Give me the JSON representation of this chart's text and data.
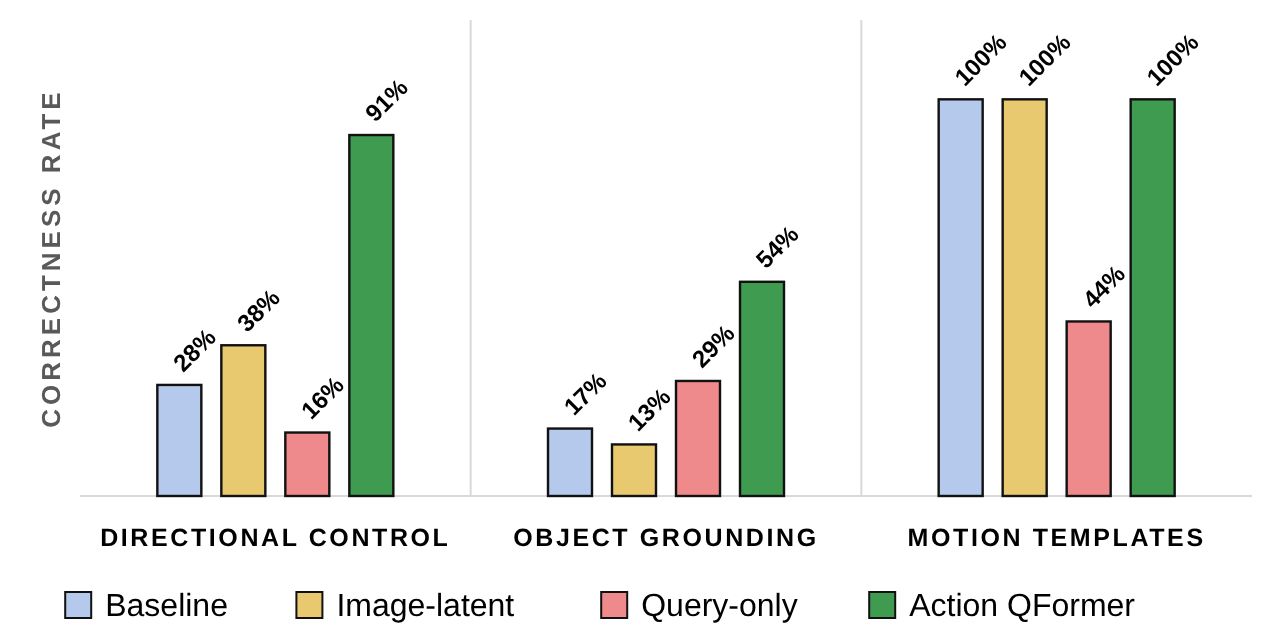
{
  "chart_data": {
    "type": "bar",
    "ylabel": "CORRECTNESS RATE",
    "categories": [
      "DIRECTIONAL CONTROL",
      "OBJECT GROUNDING",
      "MOTION TEMPLATES"
    ],
    "ylim": [
      0,
      120
    ],
    "tick_labels": "x",
    "legend": "bottom",
    "grid": false,
    "series": [
      {
        "name": "Baseline",
        "color": "#b4c9ec",
        "values": [
          28,
          17,
          100
        ],
        "value_labels": [
          "28%",
          "17%",
          "100%"
        ]
      },
      {
        "name": "Image-latent",
        "color": "#e9c96f",
        "values": [
          38,
          13,
          100
        ],
        "value_labels": [
          "38%",
          "13%",
          "100%"
        ]
      },
      {
        "name": "Query-only",
        "color": "#ef8a8c",
        "values": [
          16,
          29,
          44
        ],
        "value_labels": [
          "16%",
          "29%",
          "44%"
        ]
      },
      {
        "name": "Action QFormer",
        "color": "#3f9b50",
        "values": [
          91,
          54,
          100
        ],
        "value_labels": [
          "91%",
          "54%",
          "100%"
        ]
      }
    ]
  }
}
